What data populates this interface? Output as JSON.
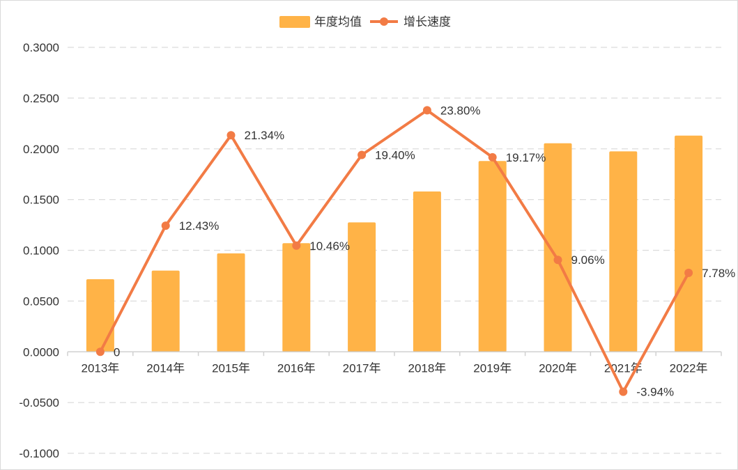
{
  "chart_data": {
    "type": "bar+line",
    "title": "",
    "categories": [
      "2013年",
      "2014年",
      "2015年",
      "2016年",
      "2017年",
      "2018年",
      "2019年",
      "2020年",
      "2021年",
      "2022年"
    ],
    "series": [
      {
        "name": "年度均值",
        "type": "bar",
        "color": "#FFB347",
        "values": [
          0.0715,
          0.08,
          0.097,
          0.107,
          0.1275,
          0.158,
          0.188,
          0.2055,
          0.1975,
          0.213
        ]
      },
      {
        "name": "增长速度",
        "type": "line",
        "color": "#F27B45",
        "values": [
          0.0,
          0.1243,
          0.2134,
          0.1046,
          0.194,
          0.238,
          0.1917,
          0.0906,
          -0.0394,
          0.0778
        ],
        "labels": [
          "0",
          "12.43%",
          "21.34%",
          "10.46%",
          "19.40%",
          "23.80%",
          "19.17%",
          "9.06%",
          "-3.94%",
          "7.78%"
        ]
      }
    ],
    "yticks": [
      "0.3000",
      "0.2500",
      "0.2000",
      "0.1500",
      "0.1000",
      "0.0500",
      "0.0000",
      "-0.0500",
      "-0.1000"
    ],
    "ylim": [
      -0.1,
      0.3
    ],
    "grid": true,
    "legend": "top-center"
  }
}
